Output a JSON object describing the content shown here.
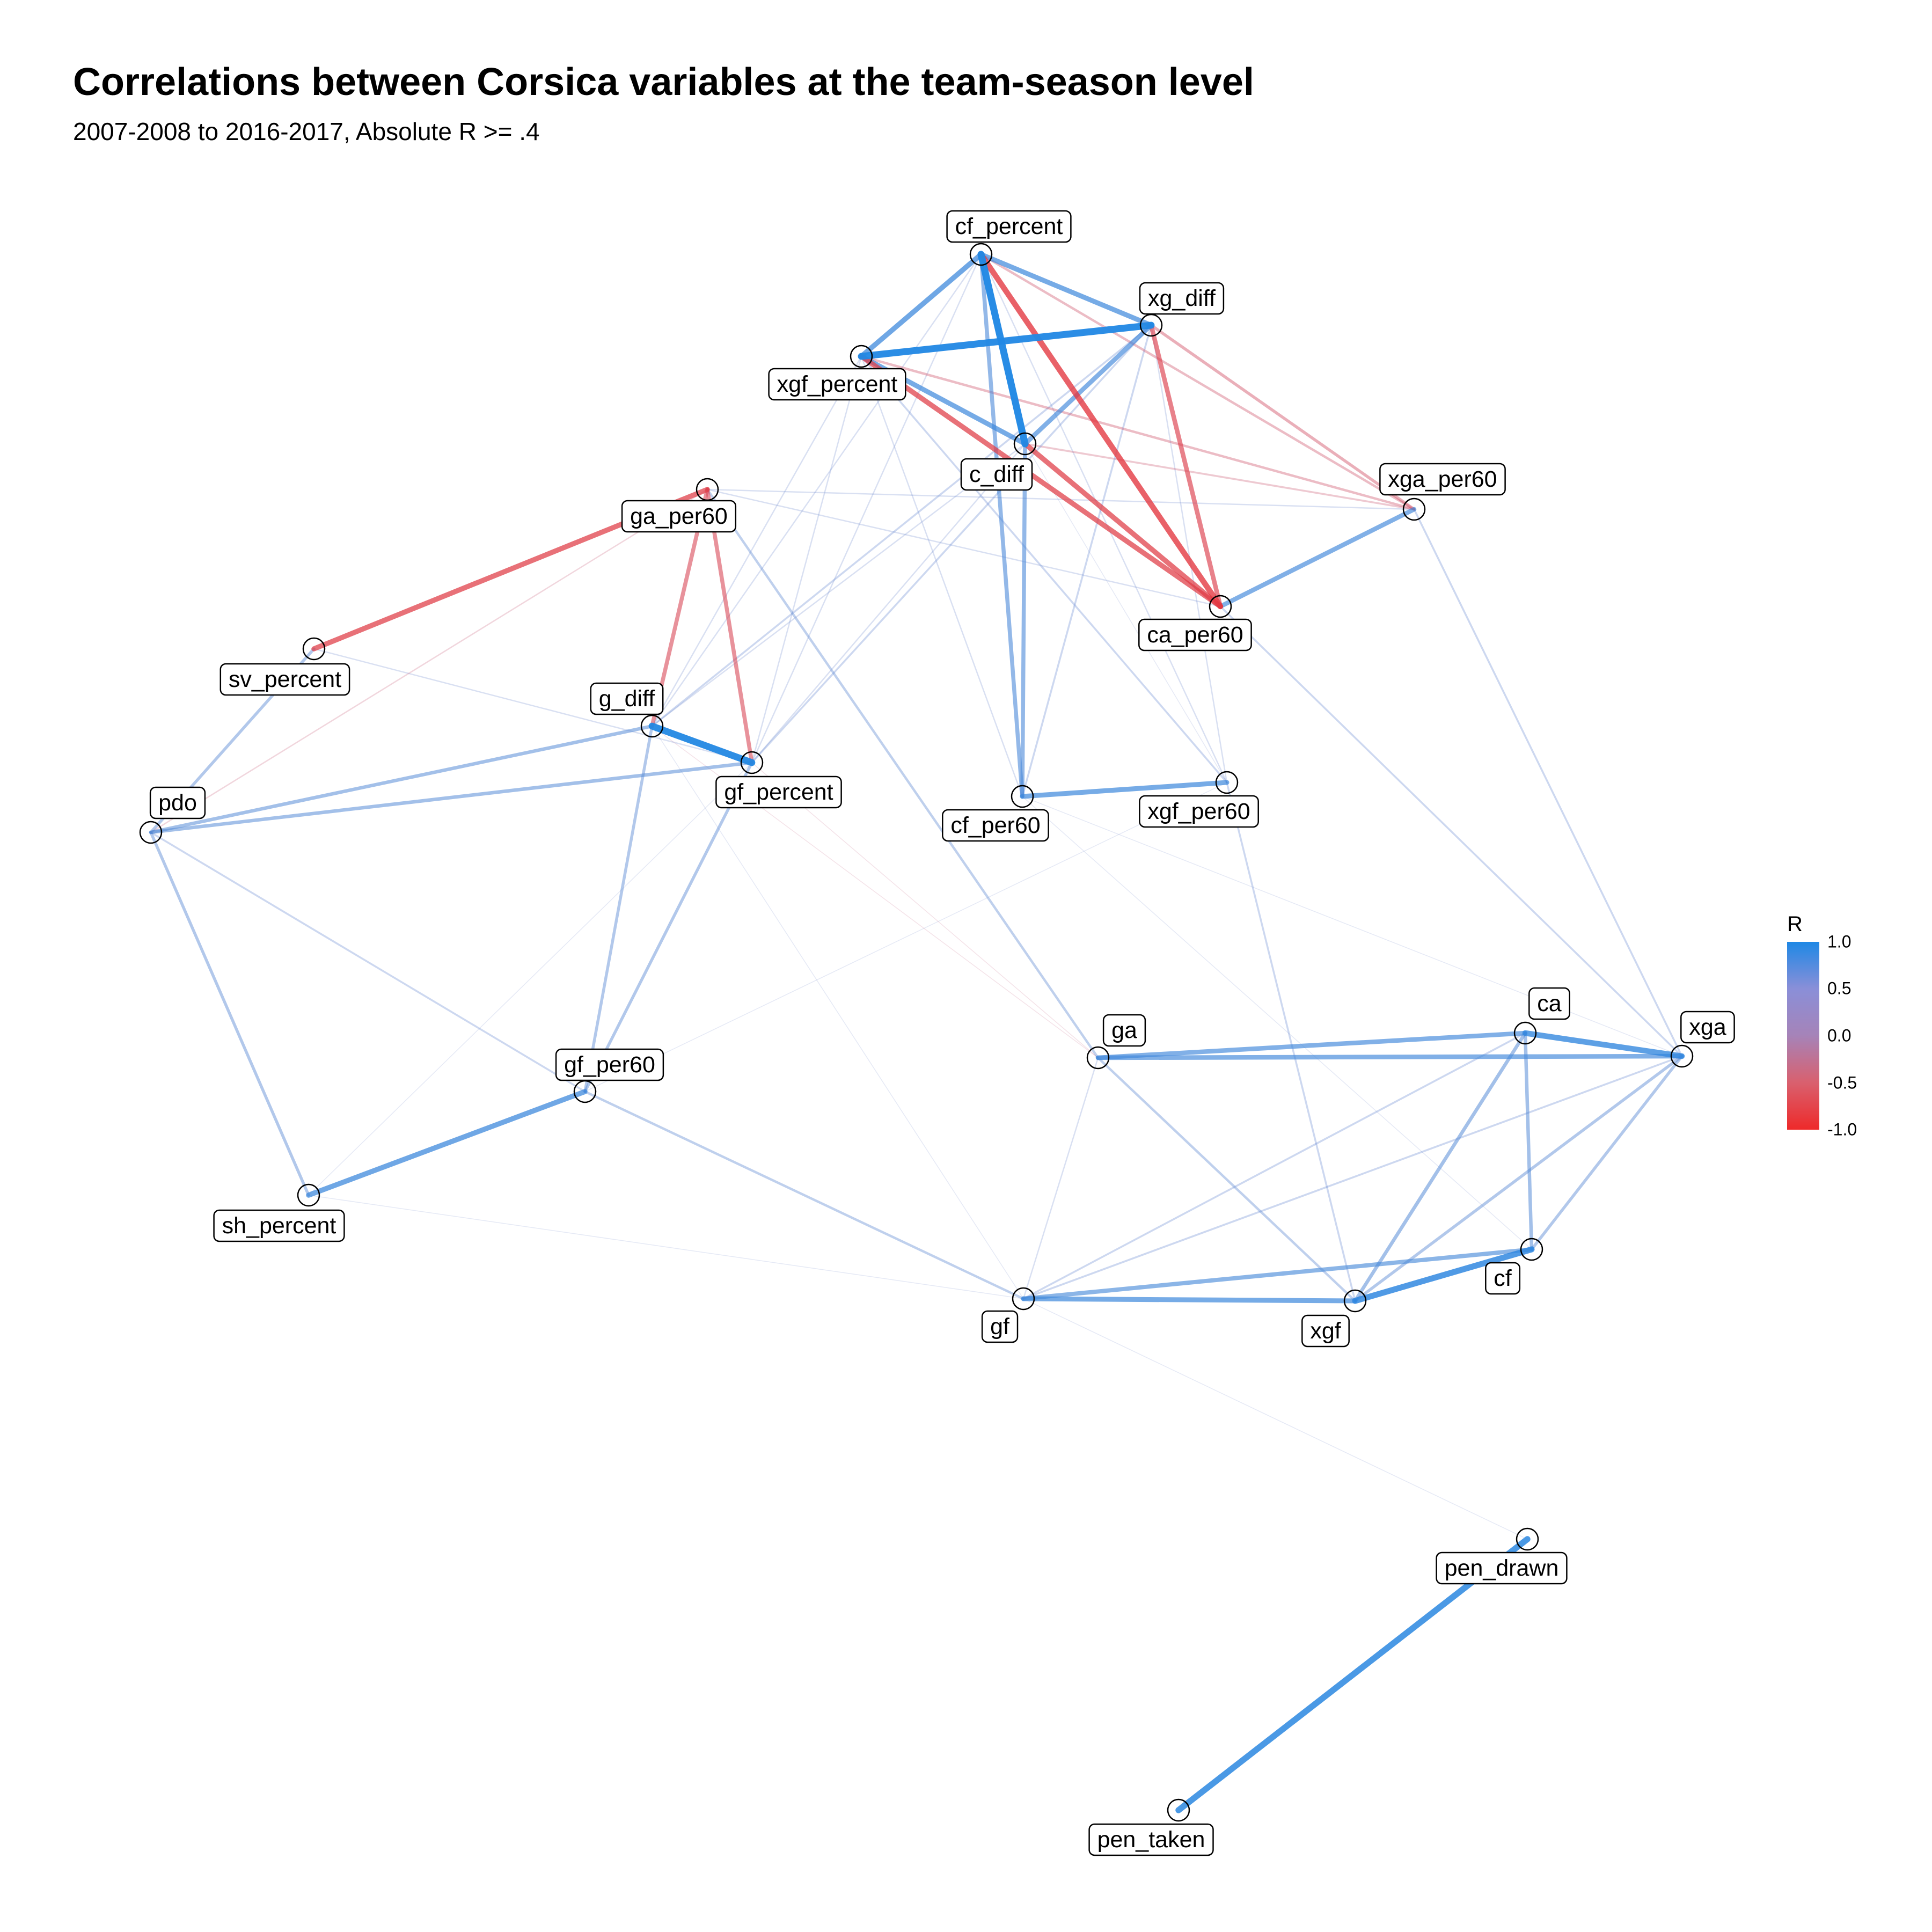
{
  "title": "Correlations between Corsica variables at the team-season level",
  "subtitle": "2007-2008 to 2016-2017, Absolute R >= .4",
  "legend": {
    "title": "R",
    "ticks": [
      "1.0",
      "0.5",
      "0.0",
      "-0.5",
      "-1.0"
    ],
    "colors": {
      "high": "#1e88e5",
      "mid": "#a683b8",
      "low": "#ee2a2a"
    }
  },
  "nodes": [
    {
      "id": "cf_percent",
      "label": "cf_percent"
    },
    {
      "id": "xg_diff",
      "label": "xg_diff"
    },
    {
      "id": "xgf_percent",
      "label": "xgf_percent"
    },
    {
      "id": "c_diff",
      "label": "c_diff"
    },
    {
      "id": "ga_per60",
      "label": "ga_per60"
    },
    {
      "id": "xga_per60",
      "label": "xga_per60"
    },
    {
      "id": "ca_per60",
      "label": "ca_per60"
    },
    {
      "id": "sv_percent",
      "label": "sv_percent"
    },
    {
      "id": "g_diff",
      "label": "g_diff"
    },
    {
      "id": "gf_percent",
      "label": "gf_percent"
    },
    {
      "id": "pdo",
      "label": "pdo"
    },
    {
      "id": "cf_per60",
      "label": "cf_per60"
    },
    {
      "id": "xgf_per60",
      "label": "xgf_per60"
    },
    {
      "id": "ga",
      "label": "ga"
    },
    {
      "id": "ca",
      "label": "ca"
    },
    {
      "id": "xga",
      "label": "xga"
    },
    {
      "id": "gf_per60",
      "label": "gf_per60"
    },
    {
      "id": "sh_percent",
      "label": "sh_percent"
    },
    {
      "id": "cf",
      "label": "cf"
    },
    {
      "id": "gf",
      "label": "gf"
    },
    {
      "id": "xgf",
      "label": "xgf"
    },
    {
      "id": "pen_drawn",
      "label": "pen_drawn"
    },
    {
      "id": "pen_taken",
      "label": "pen_taken"
    }
  ],
  "edges": [
    {
      "source": "cf_percent",
      "target": "c_diff",
      "r": 0.98
    },
    {
      "source": "xgf_percent",
      "target": "xg_diff",
      "r": 0.97
    },
    {
      "source": "g_diff",
      "target": "gf_percent",
      "r": 0.96
    },
    {
      "source": "pen_drawn",
      "target": "pen_taken",
      "r": 0.9
    },
    {
      "source": "xgf",
      "target": "cf",
      "r": 0.88
    },
    {
      "source": "cf_percent",
      "target": "xgf_percent",
      "r": 0.8
    },
    {
      "source": "cf_percent",
      "target": "xg_diff",
      "r": 0.78
    },
    {
      "source": "xgf_percent",
      "target": "c_diff",
      "r": 0.78
    },
    {
      "source": "xg_diff",
      "target": "c_diff",
      "r": 0.75
    },
    {
      "source": "ca",
      "target": "xga",
      "r": 0.85
    },
    {
      "source": "ga",
      "target": "ca",
      "r": 0.75
    },
    {
      "source": "ga",
      "target": "xga",
      "r": 0.75
    },
    {
      "source": "gf",
      "target": "xgf",
      "r": 0.78
    },
    {
      "source": "gf",
      "target": "cf",
      "r": 0.72
    },
    {
      "source": "gf_per60",
      "target": "sh_percent",
      "r": 0.8
    },
    {
      "source": "ca_per60",
      "target": "xga_per60",
      "r": 0.75
    },
    {
      "source": "cf_per60",
      "target": "xgf_per60",
      "r": 0.78
    },
    {
      "source": "cf_percent",
      "target": "cf_per60",
      "r": 0.7
    },
    {
      "source": "c_diff",
      "target": "cf_per60",
      "r": 0.7
    },
    {
      "source": "pdo",
      "target": "g_diff",
      "r": 0.65
    },
    {
      "source": "pdo",
      "target": "gf_percent",
      "r": 0.65
    },
    {
      "source": "pdo",
      "target": "sv_percent",
      "r": 0.6
    },
    {
      "source": "pdo",
      "target": "sh_percent",
      "r": 0.6
    },
    {
      "source": "g_diff",
      "target": "gf_per60",
      "r": 0.6
    },
    {
      "source": "gf_percent",
      "target": "gf_per60",
      "r": 0.6
    },
    {
      "source": "ca",
      "target": "cf",
      "r": 0.65
    },
    {
      "source": "ca",
      "target": "xgf",
      "r": 0.65
    },
    {
      "source": "xga",
      "target": "xgf",
      "r": 0.6
    },
    {
      "source": "xga",
      "target": "cf",
      "r": 0.6
    },
    {
      "source": "ga",
      "target": "xgf",
      "r": 0.55
    },
    {
      "source": "gf_per60",
      "target": "gf",
      "r": 0.55
    },
    {
      "source": "pdo",
      "target": "gf_per60",
      "r": 0.5
    },
    {
      "source": "ga_per60",
      "target": "ga",
      "r": 0.55
    },
    {
      "source": "cf_percent",
      "target": "ca_per60",
      "r": -0.85
    },
    {
      "source": "xgf_percent",
      "target": "ca_per60",
      "r": -0.8
    },
    {
      "source": "xg_diff",
      "target": "ca_per60",
      "r": -0.75
    },
    {
      "source": "c_diff",
      "target": "ca_per60",
      "r": -0.8
    },
    {
      "source": "sv_percent",
      "target": "ga_per60",
      "r": -0.8
    },
    {
      "source": "ga_per60",
      "target": "g_diff",
      "r": -0.7
    },
    {
      "source": "ga_per60",
      "target": "gf_percent",
      "r": -0.7
    },
    {
      "source": "cf_percent",
      "target": "xga_per60",
      "r": -0.55
    },
    {
      "source": "xg_diff",
      "target": "xga_per60",
      "r": -0.6
    },
    {
      "source": "xgf_percent",
      "target": "xga_per60",
      "r": -0.55
    },
    {
      "source": "c_diff",
      "target": "xga_per60",
      "r": -0.5
    },
    {
      "source": "xg_diff",
      "target": "g_diff",
      "r": 0.5
    },
    {
      "source": "xg_diff",
      "target": "gf_percent",
      "r": 0.5
    },
    {
      "source": "xg_diff",
      "target": "cf_per60",
      "r": 0.5
    },
    {
      "source": "xg_diff",
      "target": "xgf_per60",
      "r": 0.45
    },
    {
      "source": "cf_percent",
      "target": "g_diff",
      "r": 0.45
    },
    {
      "source": "cf_percent",
      "target": "gf_percent",
      "r": 0.45
    },
    {
      "source": "cf_percent",
      "target": "xgf_per60",
      "r": 0.45
    },
    {
      "source": "xgf_percent",
      "target": "g_diff",
      "r": 0.45
    },
    {
      "source": "xgf_percent",
      "target": "gf_percent",
      "r": 0.45
    },
    {
      "source": "xgf_percent",
      "target": "xgf_per60",
      "r": 0.5
    },
    {
      "source": "xgf_percent",
      "target": "cf_per60",
      "r": 0.45
    },
    {
      "source": "c_diff",
      "target": "g_diff",
      "r": 0.45
    },
    {
      "source": "c_diff",
      "target": "gf_percent",
      "r": 0.45
    },
    {
      "source": "c_diff",
      "target": "xgf_per60",
      "r": 0.4
    },
    {
      "source": "ga_per60",
      "target": "xga_per60",
      "r": 0.45
    },
    {
      "source": "ga_per60",
      "target": "ca_per60",
      "r": 0.45
    },
    {
      "source": "ca_per60",
      "target": "xga",
      "r": 0.5
    },
    {
      "source": "xga_per60",
      "target": "xga",
      "r": 0.5
    },
    {
      "source": "xgf_per60",
      "target": "xgf",
      "r": 0.5
    },
    {
      "source": "cf_per60",
      "target": "cf",
      "r": 0.4
    },
    {
      "source": "sv_percent",
      "target": "gf_percent",
      "r": 0.45
    },
    {
      "source": "ca",
      "target": "gf",
      "r": 0.5
    },
    {
      "source": "xga",
      "target": "gf",
      "r": 0.5
    },
    {
      "source": "ga",
      "target": "gf",
      "r": 0.45
    },
    {
      "source": "xga",
      "target": "cf_per60",
      "r": 0.4
    },
    {
      "source": "gf",
      "target": "pen_drawn",
      "r": 0.4
    },
    {
      "source": "g_diff",
      "target": "gf",
      "r": 0.4
    },
    {
      "source": "gf_percent",
      "target": "ga",
      "r": -0.4
    },
    {
      "source": "pdo",
      "target": "ga_per60",
      "r": -0.45
    },
    {
      "source": "xgf_per60",
      "target": "gf_per60",
      "r": 0.4
    },
    {
      "source": "sh_percent",
      "target": "gf",
      "r": 0.4
    },
    {
      "source": "sh_percent",
      "target": "gf_percent",
      "r": 0.4
    },
    {
      "source": "ga",
      "target": "g_diff",
      "r": -0.4
    }
  ]
}
